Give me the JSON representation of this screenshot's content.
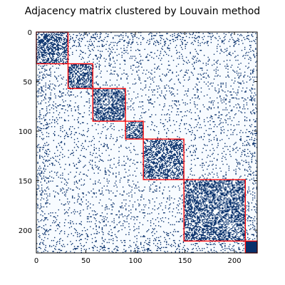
{
  "chart_data": {
    "type": "heatmap",
    "title": "Adjacency matrix clustered by Louvain method",
    "xlabel": "",
    "ylabel": "",
    "n_nodes": 223,
    "xlim": [
      0,
      223
    ],
    "ylim": [
      223,
      0
    ],
    "x_ticks": [
      0,
      50,
      100,
      150,
      200
    ],
    "y_ticks": [
      0,
      50,
      100,
      150,
      200
    ],
    "colormap": {
      "empty": "#f7fbff",
      "edge": "#08306b"
    },
    "cluster_outline_color": "#ff0000",
    "grid": false,
    "clusters": [
      {
        "start": 0,
        "end": 32
      },
      {
        "start": 32,
        "end": 57
      },
      {
        "start": 57,
        "end": 90
      },
      {
        "start": 90,
        "end": 108
      },
      {
        "start": 108,
        "end": 149
      },
      {
        "start": 149,
        "end": 211
      },
      {
        "start": 211,
        "end": 223
      }
    ],
    "intra_cluster_density": 0.55,
    "inter_cluster_density": 0.07
  }
}
